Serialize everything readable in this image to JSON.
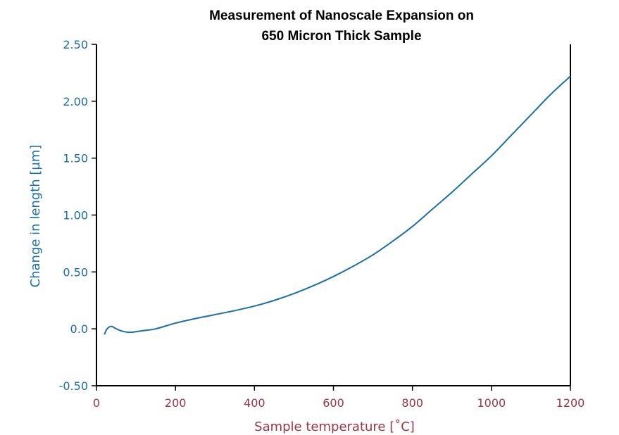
{
  "chart_data": {
    "type": "line",
    "title": [
      "Measurement of Nanoscale Expansion on",
      "650 Micron Thick Sample"
    ],
    "xlabel": "Sample temperature [˚C]",
    "ylabel": "Change in length [µm]",
    "xlim": [
      0,
      1200
    ],
    "ylim": [
      -0.5,
      2.5
    ],
    "xticks": [
      0,
      200,
      400,
      600,
      800,
      1000,
      1200
    ],
    "xtick_labels": [
      "0",
      "200",
      "400",
      "600",
      "800",
      "1000",
      "1200"
    ],
    "yticks": [
      -0.5,
      0,
      0.5,
      1.0,
      1.5,
      2.0,
      2.5
    ],
    "ytick_labels": [
      "-0.50",
      "0.0",
      "0.50",
      "1.00",
      "1.50",
      "2.00",
      "2.50"
    ],
    "grid": false,
    "series": [
      {
        "color": "#1a6fa6",
        "x": [
          20,
          25,
          30,
          35,
          40,
          50,
          60,
          70,
          80,
          90,
          100,
          120,
          150,
          200,
          250,
          300,
          350,
          400,
          450,
          500,
          550,
          600,
          650,
          700,
          750,
          800,
          850,
          900,
          950,
          1000,
          1050,
          1100,
          1150,
          1200
        ],
        "y": [
          -0.05,
          -0.01,
          0.01,
          0.02,
          0.02,
          0.0,
          -0.015,
          -0.025,
          -0.03,
          -0.03,
          -0.025,
          -0.015,
          0.0,
          0.05,
          0.09,
          0.125,
          0.16,
          0.2,
          0.25,
          0.31,
          0.38,
          0.46,
          0.55,
          0.65,
          0.77,
          0.9,
          1.05,
          1.2,
          1.36,
          1.52,
          1.7,
          1.88,
          2.06,
          2.22
        ]
      }
    ],
    "colors": {
      "series": "#1a6fa6",
      "y_axis": "#1a6fa6",
      "x_axis": "#9c3545",
      "frame": "#000000"
    }
  }
}
